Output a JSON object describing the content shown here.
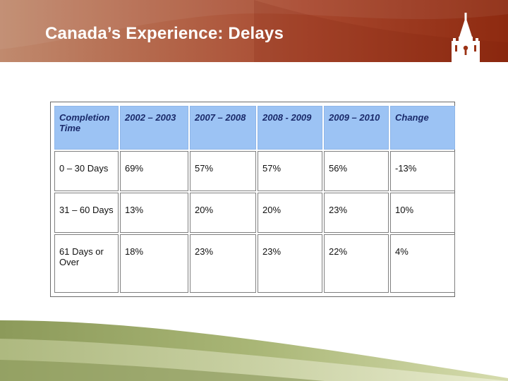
{
  "slide": {
    "title": "Canada’s Experience: Delays"
  },
  "colors": {
    "header_start": "#c08a6e",
    "header_end": "#8e2a10",
    "table_header_bg": "#9cc3f4",
    "footer_green": "#a8b878"
  },
  "icons": [
    "tower-logo-icon"
  ],
  "table": {
    "headers": [
      "Completion Time",
      "2002 – 2003",
      "2007 – 2008",
      "2008 - 2009",
      "2009 – 2010",
      "Change"
    ],
    "rows": [
      [
        "0 – 30 Days",
        "69%",
        "57%",
        "57%",
        "56%",
        "-13%"
      ],
      [
        "31 – 60 Days",
        "13%",
        "20%",
        "20%",
        "23%",
        "10%"
      ],
      [
        "61 Days or Over",
        "18%",
        "23%",
        "23%",
        "22%",
        "4%"
      ]
    ]
  }
}
